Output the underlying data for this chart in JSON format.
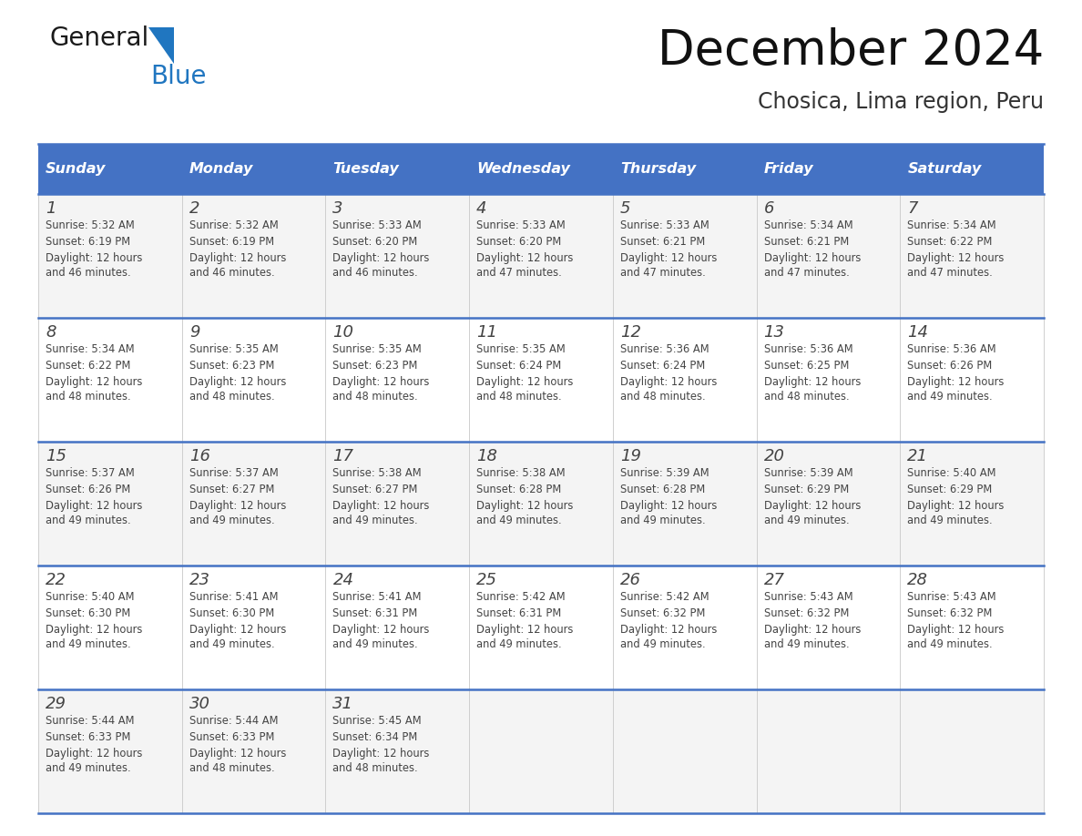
{
  "title": "December 2024",
  "subtitle": "Chosica, Lima region, Peru",
  "header_bg": "#4472C4",
  "header_text_color": "#FFFFFF",
  "days_of_week": [
    "Sunday",
    "Monday",
    "Tuesday",
    "Wednesday",
    "Thursday",
    "Friday",
    "Saturday"
  ],
  "grid_line_color": "#4472C4",
  "text_color": "#444444",
  "calendar_data": [
    [
      {
        "day": 1,
        "sunrise": "5:32 AM",
        "sunset": "6:19 PM",
        "daylight": "12 hours and 46 minutes"
      },
      {
        "day": 2,
        "sunrise": "5:32 AM",
        "sunset": "6:19 PM",
        "daylight": "12 hours and 46 minutes"
      },
      {
        "day": 3,
        "sunrise": "5:33 AM",
        "sunset": "6:20 PM",
        "daylight": "12 hours and 46 minutes"
      },
      {
        "day": 4,
        "sunrise": "5:33 AM",
        "sunset": "6:20 PM",
        "daylight": "12 hours and 47 minutes"
      },
      {
        "day": 5,
        "sunrise": "5:33 AM",
        "sunset": "6:21 PM",
        "daylight": "12 hours and 47 minutes"
      },
      {
        "day": 6,
        "sunrise": "5:34 AM",
        "sunset": "6:21 PM",
        "daylight": "12 hours and 47 minutes"
      },
      {
        "day": 7,
        "sunrise": "5:34 AM",
        "sunset": "6:22 PM",
        "daylight": "12 hours and 47 minutes"
      }
    ],
    [
      {
        "day": 8,
        "sunrise": "5:34 AM",
        "sunset": "6:22 PM",
        "daylight": "12 hours and 48 minutes"
      },
      {
        "day": 9,
        "sunrise": "5:35 AM",
        "sunset": "6:23 PM",
        "daylight": "12 hours and 48 minutes"
      },
      {
        "day": 10,
        "sunrise": "5:35 AM",
        "sunset": "6:23 PM",
        "daylight": "12 hours and 48 minutes"
      },
      {
        "day": 11,
        "sunrise": "5:35 AM",
        "sunset": "6:24 PM",
        "daylight": "12 hours and 48 minutes"
      },
      {
        "day": 12,
        "sunrise": "5:36 AM",
        "sunset": "6:24 PM",
        "daylight": "12 hours and 48 minutes"
      },
      {
        "day": 13,
        "sunrise": "5:36 AM",
        "sunset": "6:25 PM",
        "daylight": "12 hours and 48 minutes"
      },
      {
        "day": 14,
        "sunrise": "5:36 AM",
        "sunset": "6:26 PM",
        "daylight": "12 hours and 49 minutes"
      }
    ],
    [
      {
        "day": 15,
        "sunrise": "5:37 AM",
        "sunset": "6:26 PM",
        "daylight": "12 hours and 49 minutes"
      },
      {
        "day": 16,
        "sunrise": "5:37 AM",
        "sunset": "6:27 PM",
        "daylight": "12 hours and 49 minutes"
      },
      {
        "day": 17,
        "sunrise": "5:38 AM",
        "sunset": "6:27 PM",
        "daylight": "12 hours and 49 minutes"
      },
      {
        "day": 18,
        "sunrise": "5:38 AM",
        "sunset": "6:28 PM",
        "daylight": "12 hours and 49 minutes"
      },
      {
        "day": 19,
        "sunrise": "5:39 AM",
        "sunset": "6:28 PM",
        "daylight": "12 hours and 49 minutes"
      },
      {
        "day": 20,
        "sunrise": "5:39 AM",
        "sunset": "6:29 PM",
        "daylight": "12 hours and 49 minutes"
      },
      {
        "day": 21,
        "sunrise": "5:40 AM",
        "sunset": "6:29 PM",
        "daylight": "12 hours and 49 minutes"
      }
    ],
    [
      {
        "day": 22,
        "sunrise": "5:40 AM",
        "sunset": "6:30 PM",
        "daylight": "12 hours and 49 minutes"
      },
      {
        "day": 23,
        "sunrise": "5:41 AM",
        "sunset": "6:30 PM",
        "daylight": "12 hours and 49 minutes"
      },
      {
        "day": 24,
        "sunrise": "5:41 AM",
        "sunset": "6:31 PM",
        "daylight": "12 hours and 49 minutes"
      },
      {
        "day": 25,
        "sunrise": "5:42 AM",
        "sunset": "6:31 PM",
        "daylight": "12 hours and 49 minutes"
      },
      {
        "day": 26,
        "sunrise": "5:42 AM",
        "sunset": "6:32 PM",
        "daylight": "12 hours and 49 minutes"
      },
      {
        "day": 27,
        "sunrise": "5:43 AM",
        "sunset": "6:32 PM",
        "daylight": "12 hours and 49 minutes"
      },
      {
        "day": 28,
        "sunrise": "5:43 AM",
        "sunset": "6:32 PM",
        "daylight": "12 hours and 49 minutes"
      }
    ],
    [
      {
        "day": 29,
        "sunrise": "5:44 AM",
        "sunset": "6:33 PM",
        "daylight": "12 hours and 49 minutes"
      },
      {
        "day": 30,
        "sunrise": "5:44 AM",
        "sunset": "6:33 PM",
        "daylight": "12 hours and 48 minutes"
      },
      {
        "day": 31,
        "sunrise": "5:45 AM",
        "sunset": "6:34 PM",
        "daylight": "12 hours and 48 minutes"
      },
      null,
      null,
      null,
      null
    ]
  ],
  "logo_general_color": "#1a1a1a",
  "logo_blue_color": "#2076C0"
}
